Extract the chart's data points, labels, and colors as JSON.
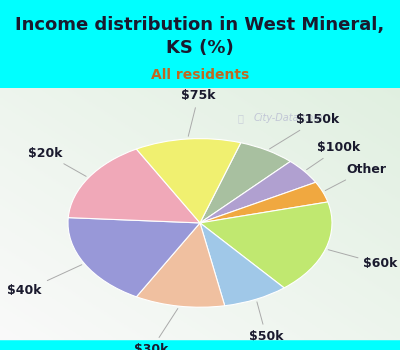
{
  "title": "Income distribution in West Mineral,\nKS (%)",
  "subtitle": "All residents",
  "bg_color": "#00FFFF",
  "plot_bg_color": "#d8ede0",
  "watermark": "City-Data.com",
  "slices": [
    {
      "label": "$150k",
      "value": 7,
      "color": "#a8c0a0"
    },
    {
      "label": "$100k",
      "value": 5,
      "color": "#b0a0d0"
    },
    {
      "label": "Other",
      "value": 4,
      "color": "#f0a840"
    },
    {
      "label": "$60k",
      "value": 18,
      "color": "#c0e870"
    },
    {
      "label": "$50k",
      "value": 8,
      "color": "#a0c8e8"
    },
    {
      "label": "$30k",
      "value": 11,
      "color": "#f0c0a0"
    },
    {
      "label": "$40k",
      "value": 18,
      "color": "#9898d8"
    },
    {
      "label": "$20k",
      "value": 16,
      "color": "#f0a8b8"
    },
    {
      "label": "$75k",
      "value": 13,
      "color": "#f0f070"
    }
  ],
  "title_color": "#1a1a2e",
  "subtitle_color": "#c06820",
  "label_color": "#1a1a2e",
  "line_color": "#aaaaaa",
  "watermark_color": "#aaaacc",
  "title_fontsize": 13,
  "subtitle_fontsize": 10,
  "label_fontsize": 9
}
